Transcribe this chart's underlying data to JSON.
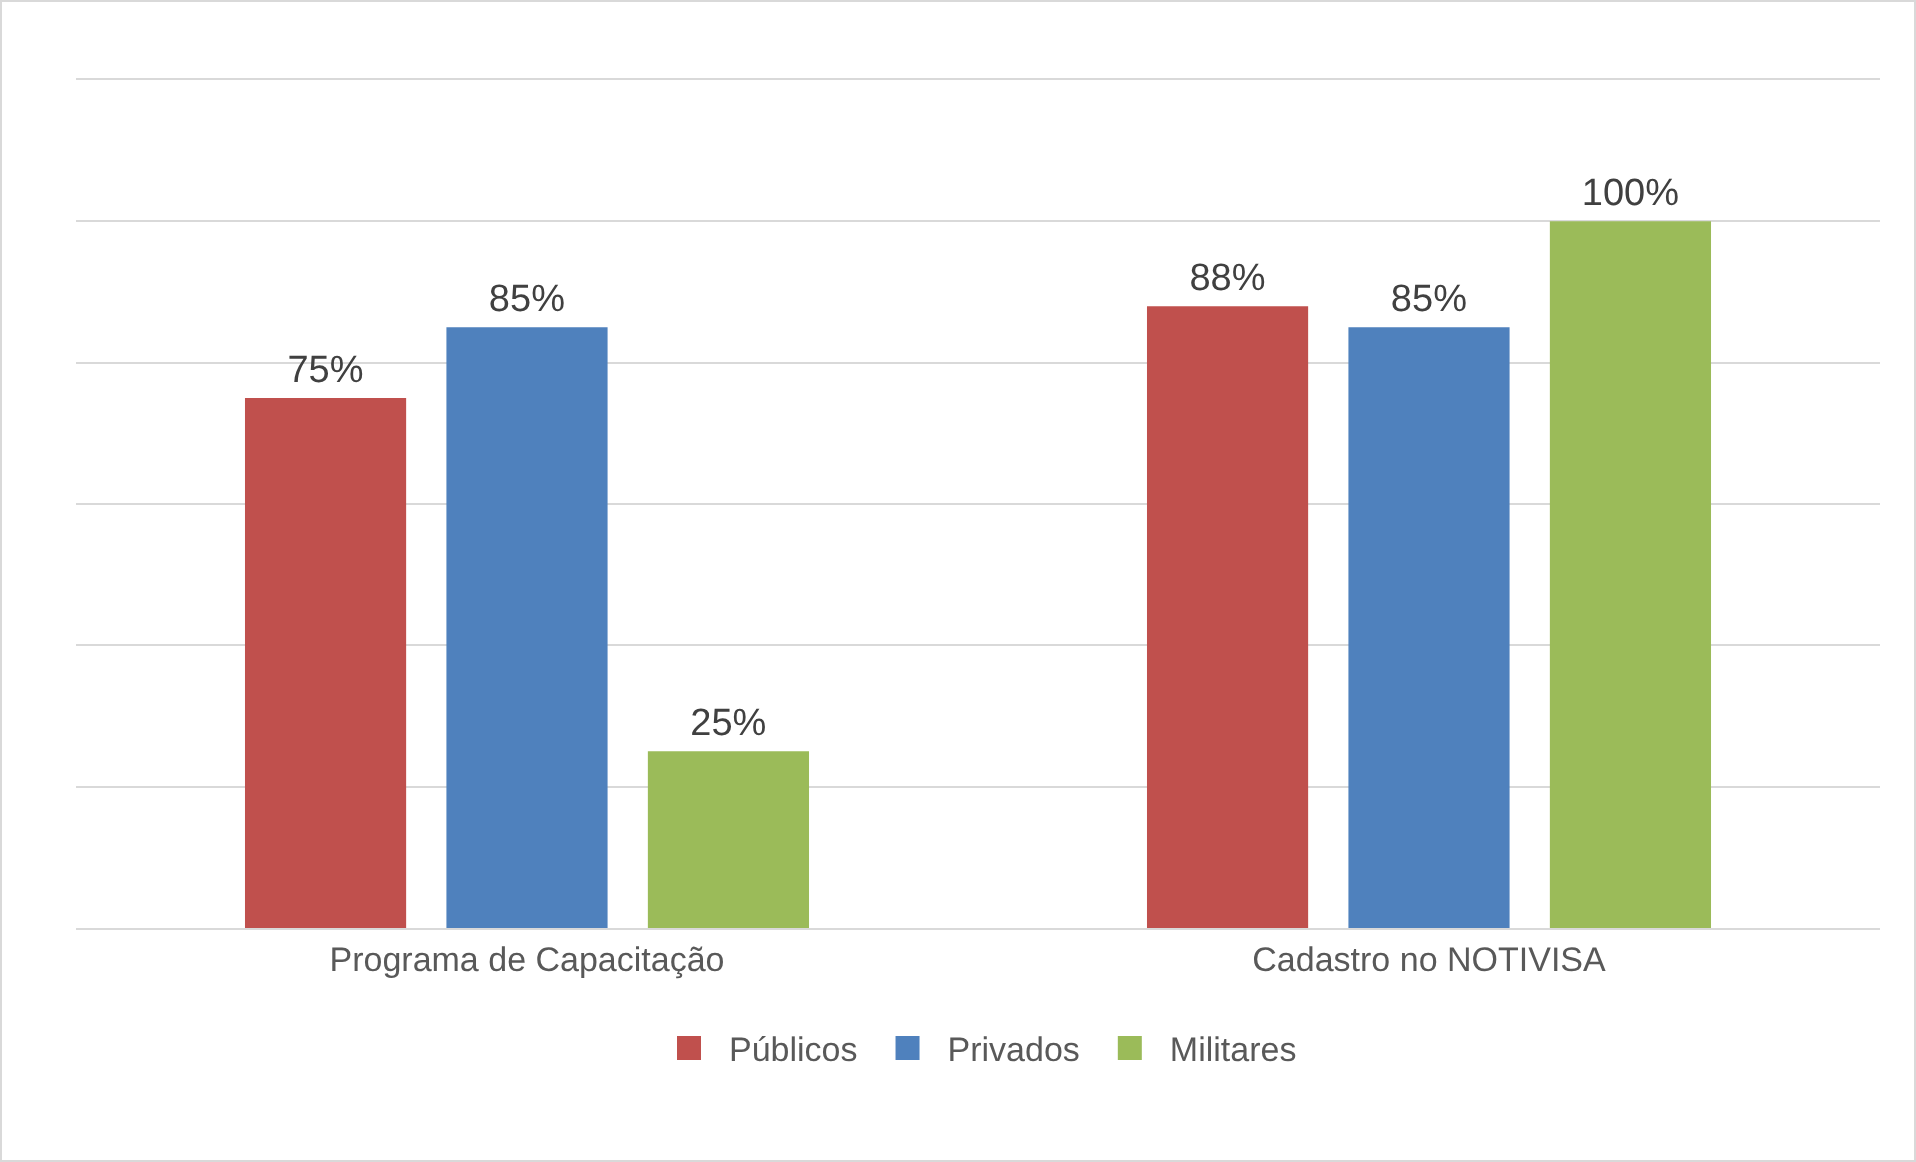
{
  "chart_data": {
    "type": "bar",
    "categories": [
      "Programa de Capacitação",
      "Cadastro no NOTIVISA"
    ],
    "series": [
      {
        "name": "Públicos",
        "color": "#c0504d",
        "values": [
          75,
          88
        ],
        "value_labels": [
          "75%",
          "88%"
        ]
      },
      {
        "name": "Privados",
        "color": "#4f81bd",
        "values": [
          85,
          85
        ],
        "value_labels": [
          "85%",
          "85%"
        ]
      },
      {
        "name": "Militares",
        "color": "#9bbb59",
        "values": [
          25,
          100
        ],
        "value_labels": [
          "25%",
          "100%"
        ]
      }
    ],
    "ylim": [
      0,
      120
    ],
    "yticks": [
      {
        "value": 0,
        "label": null
      },
      {
        "value": 20,
        "label": null
      },
      {
        "value": 40,
        "label": null
      },
      {
        "value": 60,
        "label": null
      },
      {
        "value": 80,
        "label": null
      },
      {
        "value": 100,
        "label": null
      },
      {
        "value": 120,
        "label": null
      }
    ],
    "tick_labels": "x",
    "grid": "y",
    "legend": "bottom"
  }
}
